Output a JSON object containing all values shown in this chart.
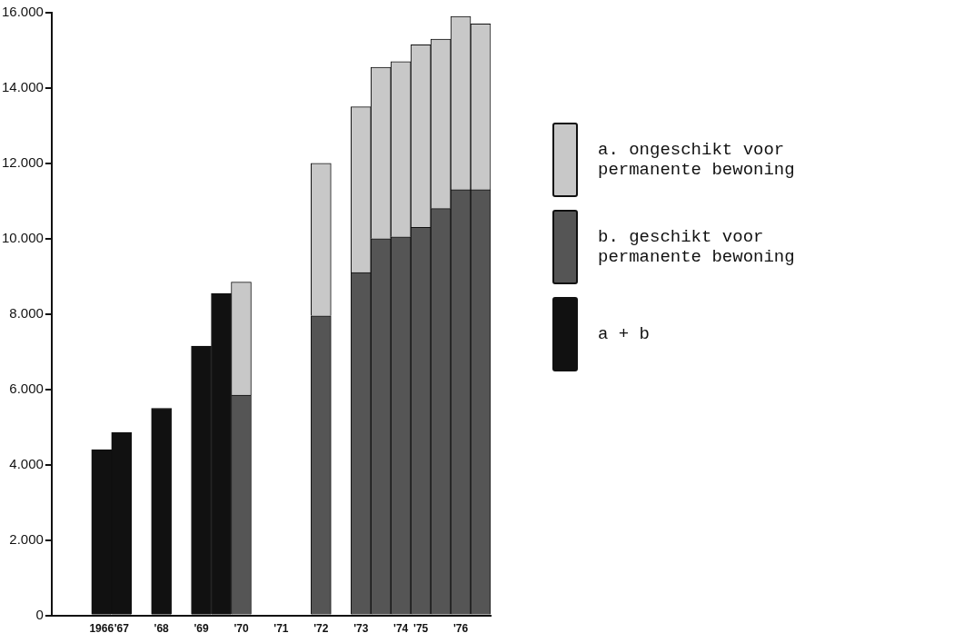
{
  "chart_data": {
    "type": "bar",
    "stacked": true,
    "legend": "right",
    "grid": false,
    "categories": [
      null,
      null,
      "1966",
      "'67",
      null,
      "'68",
      null,
      "'69",
      null,
      "'70",
      null,
      "'71",
      null,
      "'72",
      null,
      "'73",
      null,
      "'74",
      "'75",
      null,
      "'76",
      null
    ],
    "series": [
      {
        "name": "a + b",
        "color": "#111111",
        "values": [
          null,
          null,
          4400,
          4850,
          null,
          5500,
          null,
          7150,
          8550,
          null,
          null,
          null,
          null,
          null,
          null,
          null,
          null,
          null,
          null,
          null,
          null,
          null
        ]
      },
      {
        "name": "b. geschikt voor permanente bewoning",
        "color": "#555555",
        "values": [
          null,
          null,
          null,
          null,
          null,
          null,
          null,
          null,
          null,
          5850,
          null,
          null,
          null,
          7950,
          null,
          9100,
          10000,
          10050,
          10300,
          10800,
          11300,
          11300
        ]
      },
      {
        "name": "a. ongeschikt voor permanente bewoning",
        "color": "#c8c8c8",
        "values": [
          null,
          null,
          null,
          null,
          null,
          null,
          null,
          null,
          null,
          3000,
          null,
          null,
          null,
          4050,
          null,
          4400,
          4550,
          4650,
          4850,
          4500,
          4600,
          4400
        ]
      }
    ],
    "ylim": [
      0,
      16000
    ],
    "yticks": [
      0,
      {
        "value": 2000,
        "label": "2.000"
      },
      {
        "value": 4000,
        "label": "4.000"
      },
      {
        "value": 6000,
        "label": "6.000"
      },
      {
        "value": 8000,
        "label": "8.000"
      },
      {
        "value": 10000,
        "label": "10.000"
      },
      {
        "value": 12000,
        "label": "12.000"
      },
      {
        "value": 14000,
        "label": "14.000"
      },
      {
        "value": 16000,
        "label": "16.000"
      }
    ]
  }
}
